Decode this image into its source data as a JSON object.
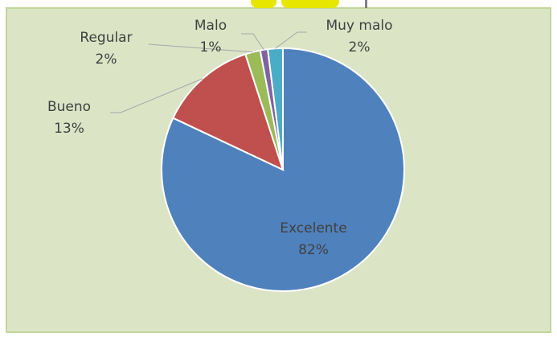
{
  "chart_data": {
    "type": "pie",
    "categories": [
      "Excelente",
      "Bueno",
      "Regular",
      "Malo",
      "Muy malo"
    ],
    "values": [
      82,
      13,
      2,
      1,
      2
    ],
    "value_labels": [
      "82%",
      "13%",
      "2%",
      "1%",
      "2%"
    ],
    "colors": [
      "#4f81bd",
      "#c0504d",
      "#9bbb59",
      "#8064a2",
      "#4bacc6"
    ]
  }
}
